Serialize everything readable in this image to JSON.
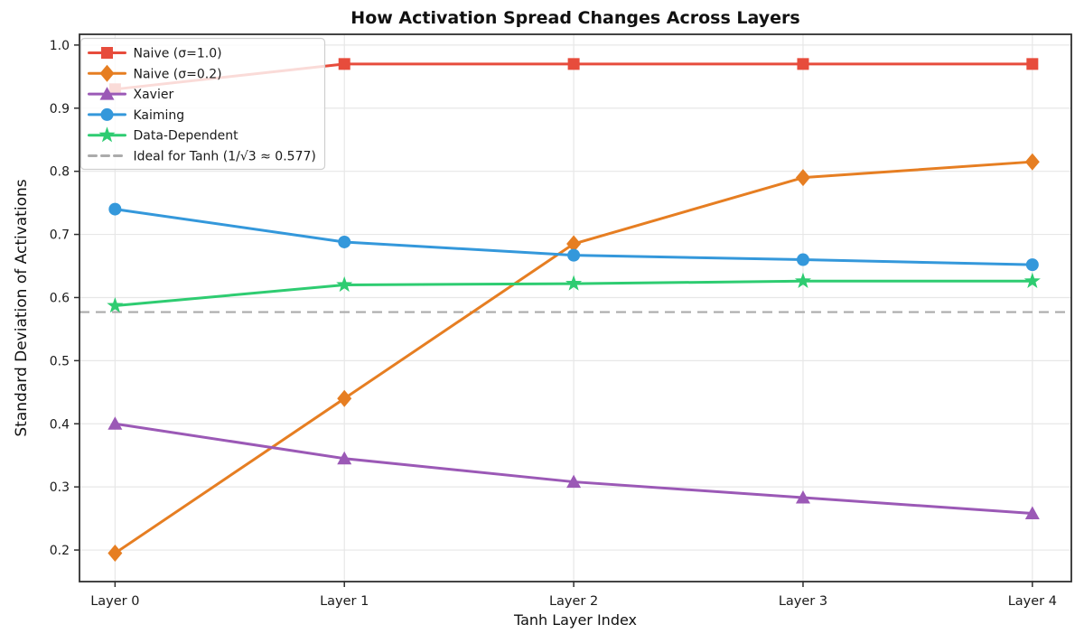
{
  "chart_data": {
    "type": "line",
    "title": "How Activation Spread Changes Across Layers",
    "xlabel": "Tanh Layer Index",
    "ylabel": "Standard Deviation of Activations",
    "categories": [
      "Layer 0",
      "Layer 1",
      "Layer 2",
      "Layer 3",
      "Layer 4"
    ],
    "x": [
      0,
      1,
      2,
      3,
      4
    ],
    "y_ticks": [
      0.2,
      0.3,
      0.4,
      0.5,
      0.6,
      0.7,
      0.8,
      0.9,
      1.0
    ],
    "ylim": [
      0.15,
      1.017
    ],
    "xlim": [
      -0.155,
      4.17
    ],
    "grid": true,
    "legend_position": "upper left",
    "series": [
      {
        "name": "Naive (σ=1.0)",
        "marker": "square",
        "color": "#e74c3c",
        "values": [
          0.93,
          0.97,
          0.97,
          0.97,
          0.97
        ]
      },
      {
        "name": "Naive (σ=0.2)",
        "marker": "diamond",
        "color": "#e67e22",
        "values": [
          0.195,
          0.44,
          0.685,
          0.79,
          0.815
        ]
      },
      {
        "name": "Xavier",
        "marker": "triangle",
        "color": "#9b59b6",
        "values": [
          0.4,
          0.345,
          0.308,
          0.283,
          0.258
        ]
      },
      {
        "name": "Kaiming",
        "marker": "circle",
        "color": "#3498db",
        "values": [
          0.74,
          0.688,
          0.667,
          0.66,
          0.652
        ]
      },
      {
        "name": "Data-Dependent",
        "marker": "star",
        "color": "#2ecc71",
        "values": [
          0.587,
          0.62,
          0.622,
          0.626,
          0.626
        ]
      }
    ],
    "reference_line": {
      "label": "Ideal for Tanh (1/√3 ≈ 0.577)",
      "value": 0.577,
      "color": "#ababab",
      "style": "dashed"
    },
    "colors": {
      "grid": "#e7e7e7",
      "spine": "#2f2f2f",
      "tick_label": "#1a1a1a",
      "legend_border": "#cfcfcf",
      "background": "#ffffff"
    }
  }
}
